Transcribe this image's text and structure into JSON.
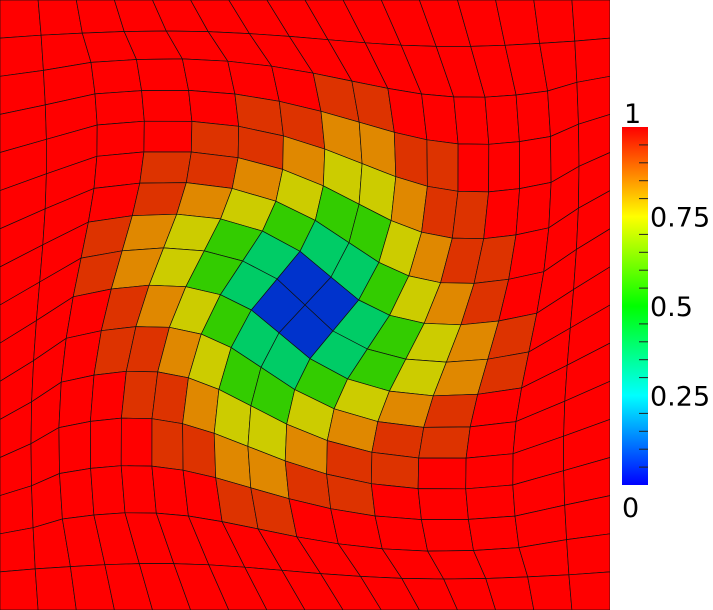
{
  "colormap": {
    "stops": [
      "#0000ff",
      "#00ffff",
      "#00ff00",
      "#ffff00",
      "#ff0000"
    ],
    "min": 0,
    "max": 1
  },
  "legend": {
    "labels": [
      {
        "value": 1,
        "text": "1"
      },
      {
        "value": 0.75,
        "text": "0.75"
      },
      {
        "value": 0.5,
        "text": "0.5"
      },
      {
        "value": 0.25,
        "text": "0.25"
      },
      {
        "value": 0,
        "text": "0"
      }
    ],
    "minor_ticks": 20
  },
  "field": {
    "grid": 16,
    "swirl": 0.9,
    "levels": [
      1.0,
      0.85,
      0.7,
      0.55,
      0.4,
      0.25,
      0.1
    ],
    "colors": [
      "#ff0000",
      "#dd3300",
      "#e08800",
      "#cccc00",
      "#33cc00",
      "#00cc66",
      "#0033cc"
    ]
  }
}
